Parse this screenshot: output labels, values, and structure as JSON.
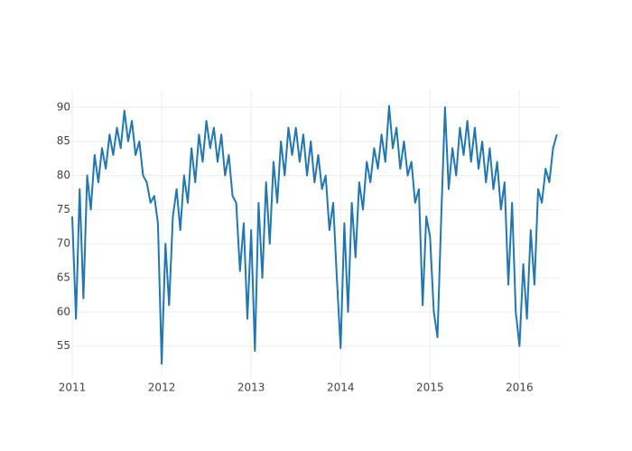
{
  "chart_data": {
    "type": "line",
    "x": [
      2011,
      2011.042,
      2011.083,
      2011.125,
      2011.167,
      2011.208,
      2011.25,
      2011.292,
      2011.333,
      2011.375,
      2011.417,
      2011.458,
      2011.5,
      2011.542,
      2011.583,
      2011.625,
      2011.667,
      2011.708,
      2011.75,
      2011.792,
      2011.833,
      2011.875,
      2011.917,
      2011.958,
      2012,
      2012.042,
      2012.083,
      2012.125,
      2012.167,
      2012.208,
      2012.25,
      2012.292,
      2012.333,
      2012.375,
      2012.417,
      2012.458,
      2012.5,
      2012.542,
      2012.583,
      2012.625,
      2012.667,
      2012.708,
      2012.75,
      2012.792,
      2012.833,
      2012.875,
      2012.917,
      2012.958,
      2013,
      2013.042,
      2013.083,
      2013.125,
      2013.167,
      2013.208,
      2013.25,
      2013.292,
      2013.333,
      2013.375,
      2013.417,
      2013.458,
      2013.5,
      2013.542,
      2013.583,
      2013.625,
      2013.667,
      2013.708,
      2013.75,
      2013.792,
      2013.833,
      2013.875,
      2013.917,
      2013.958,
      2014,
      2014.042,
      2014.083,
      2014.125,
      2014.167,
      2014.208,
      2014.25,
      2014.292,
      2014.333,
      2014.375,
      2014.417,
      2014.458,
      2014.5,
      2014.542,
      2014.583,
      2014.625,
      2014.667,
      2014.708,
      2014.75,
      2014.792,
      2014.833,
      2014.875,
      2014.917,
      2014.958,
      2015,
      2015.042,
      2015.083,
      2015.125,
      2015.167,
      2015.208,
      2015.25,
      2015.292,
      2015.333,
      2015.375,
      2015.417,
      2015.458,
      2015.5,
      2015.542,
      2015.583,
      2015.625,
      2015.667,
      2015.708,
      2015.75,
      2015.792,
      2015.833,
      2015.875,
      2015.917,
      2015.958,
      2016,
      2016.042,
      2016.083,
      2016.125,
      2016.167,
      2016.208,
      2016.25,
      2016.292,
      2016.333,
      2016.375,
      2016.417
    ],
    "series": [
      {
        "color": "#1f77b4",
        "values": [
          74,
          59,
          78,
          62,
          80,
          75,
          83,
          79,
          84,
          81,
          86,
          83,
          87,
          84,
          89.5,
          85,
          88,
          83,
          85,
          80,
          79,
          76,
          77,
          73,
          52.4,
          70,
          61,
          74,
          78,
          72,
          80,
          76,
          84,
          79,
          86,
          82,
          88,
          84,
          87,
          82,
          86,
          80,
          83,
          77,
          76,
          66,
          73,
          59,
          72,
          54.3,
          76,
          65,
          79,
          70,
          82,
          76,
          85,
          80,
          87,
          83,
          87,
          82,
          86,
          80,
          85,
          79,
          83,
          78,
          80,
          72,
          76,
          65,
          54.7,
          73,
          60,
          76,
          68,
          79,
          75,
          82,
          79,
          84,
          81,
          86,
          82,
          90.2,
          84,
          87,
          81,
          85,
          80,
          82,
          76,
          78,
          61,
          74,
          71,
          60,
          56.3,
          74,
          90,
          78,
          84,
          80,
          87,
          83,
          88,
          82,
          87,
          81,
          85,
          79,
          84,
          78,
          82,
          75,
          79,
          64,
          76,
          60,
          55,
          67,
          59,
          72,
          64,
          78,
          76,
          81,
          79,
          84,
          86
        ]
      }
    ],
    "xlim": [
      2011,
      2016.45
    ],
    "xticks": [
      2011,
      2012,
      2013,
      2014,
      2015,
      2016
    ],
    "ylim": [
      50.2,
      92.5
    ],
    "yticks": [
      55,
      60,
      65,
      70,
      75,
      80,
      85,
      90
    ],
    "grid": true
  }
}
